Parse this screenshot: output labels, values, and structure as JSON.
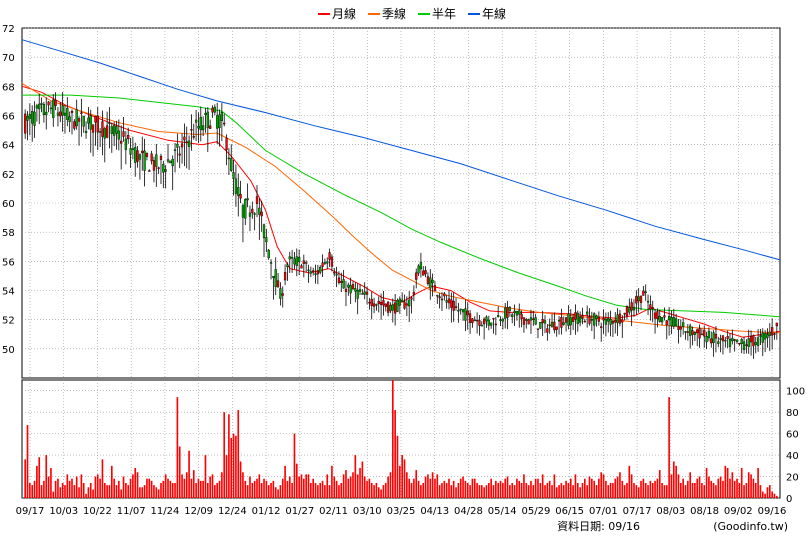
{
  "legend": [
    {
      "label": "月線",
      "color": "#ff0000"
    },
    {
      "label": "季線",
      "color": "#ff6600"
    },
    {
      "label": "半年",
      "color": "#00cc00"
    },
    {
      "label": "年線",
      "color": "#0055dd"
    }
  ],
  "footer": {
    "date_label": "資料日期: 09/16",
    "source": "(Goodinfo.tw)"
  },
  "colors": {
    "up_candle": "#ff0000",
    "down_candle": "#00aa00",
    "wick": "#000000",
    "volume": "#ff0000",
    "grid": "#999999",
    "background": "#ffffff"
  },
  "chart_data": [
    {
      "type": "candlestick",
      "title": "",
      "ylim": [
        48,
        72
      ],
      "y_ticks": [
        50,
        52,
        54,
        56,
        58,
        60,
        62,
        64,
        66,
        68,
        70,
        72
      ],
      "x_tick_labels": [
        "09/17",
        "10/03",
        "10/22",
        "11/07",
        "11/24",
        "12/09",
        "12/24",
        "01/12",
        "01/27",
        "02/11",
        "03/10",
        "03/25",
        "04/13",
        "04/28",
        "05/14",
        "05/29",
        "06/15",
        "07/01",
        "07/17",
        "08/03",
        "08/18",
        "09/02",
        "09/16"
      ],
      "grid": true,
      "legend_position": "top-center",
      "moving_averages": [
        {
          "name": "月線",
          "points": [
            [
              0,
              68.0
            ],
            [
              20,
              67.6
            ],
            [
              45,
              66.7
            ],
            [
              75,
              65.9
            ],
            [
              110,
              65.0
            ],
            [
              150,
              64.3
            ],
            [
              185,
              64.0
            ],
            [
              200,
              64.2
            ],
            [
              215,
              63.2
            ],
            [
              235,
              61.5
            ],
            [
              250,
              59.5
            ],
            [
              262,
              57.0
            ],
            [
              275,
              55.5
            ],
            [
              295,
              55.2
            ],
            [
              315,
              55.5
            ],
            [
              330,
              55.0
            ],
            [
              350,
              54.3
            ],
            [
              370,
              53.5
            ],
            [
              390,
              53.2
            ],
            [
              405,
              53.8
            ],
            [
              420,
              54.3
            ],
            [
              440,
              54.0
            ],
            [
              460,
              53.2
            ],
            [
              480,
              52.6
            ],
            [
              500,
              52.5
            ],
            [
              530,
              52.5
            ],
            [
              560,
              52.4
            ],
            [
              590,
              52.2
            ],
            [
              610,
              52.1
            ],
            [
              630,
              52.3
            ],
            [
              645,
              52.8
            ],
            [
              660,
              52.5
            ],
            [
              680,
              52.1
            ],
            [
              700,
              51.7
            ],
            [
              720,
              51.2
            ],
            [
              740,
              50.8
            ],
            [
              760,
              51.0
            ],
            [
              778,
              51.2
            ]
          ]
        },
        {
          "name": "季線",
          "points": [
            [
              0,
              68.2
            ],
            [
              30,
              67.0
            ],
            [
              60,
              66.3
            ],
            [
              100,
              65.5
            ],
            [
              140,
              64.9
            ],
            [
              180,
              64.7
            ],
            [
              200,
              64.8
            ],
            [
              230,
              63.8
            ],
            [
              260,
              62.5
            ],
            [
              290,
              60.8
            ],
            [
              320,
              59.0
            ],
            [
              340,
              57.7
            ],
            [
              360,
              56.5
            ],
            [
              380,
              55.4
            ],
            [
              400,
              54.7
            ],
            [
              420,
              54.0
            ],
            [
              440,
              53.6
            ],
            [
              470,
              53.2
            ],
            [
              500,
              52.8
            ],
            [
              530,
              52.5
            ],
            [
              560,
              52.3
            ],
            [
              590,
              52.1
            ],
            [
              620,
              51.9
            ],
            [
              660,
              51.6
            ],
            [
              700,
              51.4
            ],
            [
              740,
              51.2
            ],
            [
              778,
              51.1
            ]
          ]
        },
        {
          "name": "半年",
          "points": [
            [
              0,
              67.4
            ],
            [
              50,
              67.4
            ],
            [
              100,
              67.2
            ],
            [
              140,
              66.9
            ],
            [
              180,
              66.6
            ],
            [
              205,
              66.3
            ],
            [
              220,
              65.5
            ],
            [
              250,
              63.6
            ],
            [
              290,
              62.0
            ],
            [
              330,
              60.6
            ],
            [
              370,
              59.3
            ],
            [
              400,
              58.2
            ],
            [
              430,
              57.3
            ],
            [
              470,
              56.2
            ],
            [
              510,
              55.2
            ],
            [
              550,
              54.3
            ],
            [
              580,
              53.6
            ],
            [
              610,
              53.0
            ],
            [
              640,
              52.7
            ],
            [
              680,
              52.6
            ],
            [
              720,
              52.5
            ],
            [
              778,
              52.2
            ]
          ]
        },
        {
          "name": "年線",
          "points": [
            [
              0,
              71.2
            ],
            [
              40,
              70.4
            ],
            [
              80,
              69.6
            ],
            [
              120,
              68.7
            ],
            [
              160,
              67.8
            ],
            [
              200,
              67.0
            ],
            [
              250,
              66.2
            ],
            [
              300,
              65.3
            ],
            [
              350,
              64.5
            ],
            [
              400,
              63.6
            ],
            [
              450,
              62.7
            ],
            [
              500,
              61.6
            ],
            [
              550,
              60.5
            ],
            [
              600,
              59.5
            ],
            [
              650,
              58.4
            ],
            [
              700,
              57.5
            ],
            [
              740,
              56.8
            ],
            [
              778,
              56.1
            ]
          ]
        }
      ]
    },
    {
      "type": "bar",
      "title": "",
      "ylim": [
        0,
        110
      ],
      "y_ticks": [
        0,
        20,
        40,
        60,
        80,
        100
      ],
      "series": [
        {
          "values": [
            36,
            68,
            14,
            12,
            16,
            30,
            38,
            12,
            16,
            40,
            20,
            28,
            6,
            16,
            18,
            10,
            14,
            12,
            22,
            16,
            18,
            12,
            20,
            10,
            22,
            14,
            4,
            10,
            14,
            8,
            20,
            22,
            18,
            36,
            14,
            12,
            12,
            30,
            18,
            12,
            16,
            8,
            20,
            14,
            12,
            18,
            22,
            28,
            24,
            10,
            10,
            12,
            18,
            18,
            16,
            12,
            10,
            8,
            14,
            16,
            22,
            18,
            16,
            14,
            14,
            94,
            48,
            22,
            18,
            24,
            44,
            18,
            26,
            14,
            18,
            16,
            16,
            40,
            14,
            20,
            22,
            12,
            14,
            16,
            24,
            80,
            40,
            78,
            56,
            60,
            58,
            82,
            34,
            24,
            16,
            12,
            20,
            14,
            16,
            18,
            22,
            14,
            18,
            16,
            12,
            14,
            16,
            10,
            8,
            12,
            18,
            30,
            16,
            20,
            14,
            60,
            32,
            20,
            22,
            18,
            22,
            22,
            14,
            18,
            14,
            12,
            14,
            16,
            12,
            22,
            12,
            30,
            20,
            16,
            12,
            14,
            22,
            26,
            18,
            20,
            24,
            40,
            22,
            28,
            34,
            20,
            16,
            18,
            14,
            12,
            14,
            10,
            8,
            12,
            14,
            20,
            24,
            112,
            82,
            58,
            30,
            40,
            36,
            24,
            18,
            14,
            18,
            26,
            16,
            12,
            14,
            20,
            22,
            18,
            24,
            18,
            22,
            12,
            14,
            16,
            14,
            18,
            12,
            16,
            10,
            14,
            18,
            20,
            16,
            14,
            12,
            18,
            18,
            14,
            12,
            12,
            10,
            12,
            14,
            18,
            12,
            16,
            14,
            16,
            14,
            18,
            20,
            12,
            14,
            12,
            18,
            16,
            14,
            22,
            14,
            12,
            16,
            12,
            18,
            18,
            14,
            22,
            12,
            14,
            16,
            12,
            22,
            10,
            12,
            14,
            12,
            16,
            14,
            18,
            12,
            22,
            14,
            10,
            14,
            18,
            12,
            20,
            18,
            16,
            12,
            18,
            24,
            22,
            16,
            12,
            14,
            14,
            18,
            20,
            24,
            16,
            12,
            14,
            30,
            22,
            14,
            12,
            10,
            16,
            18,
            14,
            12,
            16,
            14,
            16,
            18,
            26,
            14,
            12,
            12,
            94,
            22,
            34,
            30,
            22,
            14,
            18,
            12,
            16,
            24,
            14,
            14,
            18,
            20,
            14,
            12,
            28,
            20,
            16,
            14,
            12,
            18,
            20,
            16,
            30,
            28,
            18,
            24,
            16,
            18,
            14,
            28,
            12,
            14,
            24,
            22,
            18,
            14,
            28,
            12,
            6,
            4,
            10,
            12,
            6,
            4,
            2
          ]
        }
      ]
    }
  ]
}
